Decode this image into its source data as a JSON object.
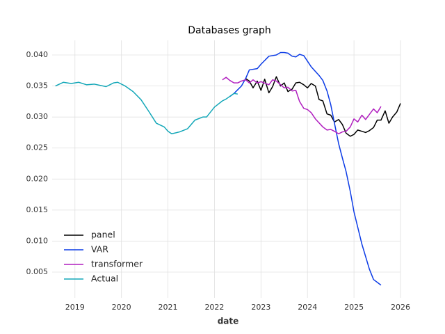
{
  "chart_data": {
    "type": "line",
    "title": "Databases graph",
    "x_label": "date",
    "xlim": [
      2018.51,
      2026
    ],
    "xticks": [
      2019,
      2020,
      2021,
      2022,
      2023,
      2024,
      2025,
      2026
    ],
    "ylim": [
      0.00085,
      0.04236
    ],
    "yticks": [
      0.005,
      {
        "value": 0.01,
        "label": "0.010"
      },
      0.015,
      {
        "value": 0.02,
        "label": "0.020"
      },
      0.025,
      {
        "value": 0.03,
        "label": "0.030"
      },
      0.035,
      {
        "value": 0.04,
        "label": "0.040"
      }
    ],
    "grid": true,
    "legend": "lower left",
    "series": [
      {
        "name": "panel",
        "color": "#000000",
        "x": [
          2022.67,
          2022.75,
          2022.83,
          2022.92,
          2023.0,
          2023.08,
          2023.17,
          2023.25,
          2023.33,
          2023.42,
          2023.5,
          2023.58,
          2023.67,
          2023.75,
          2023.83,
          2023.92,
          2024.0,
          2024.08,
          2024.17,
          2024.25,
          2024.33,
          2024.42,
          2024.5,
          2024.58,
          2024.67,
          2024.75,
          2024.83,
          2024.92,
          2025.0,
          2025.08,
          2025.17,
          2025.25,
          2025.33,
          2025.42,
          2025.5,
          2025.58,
          2025.67,
          2025.75,
          2025.83,
          2025.92,
          2026.0
        ],
        "values": [
          0.0362,
          0.0358,
          0.0347,
          0.0358,
          0.0343,
          0.0361,
          0.0339,
          0.0349,
          0.0365,
          0.035,
          0.0355,
          0.0341,
          0.0345,
          0.0355,
          0.0356,
          0.0352,
          0.0347,
          0.0354,
          0.035,
          0.0328,
          0.0326,
          0.0305,
          0.0303,
          0.0292,
          0.0296,
          0.0288,
          0.0274,
          0.0269,
          0.0272,
          0.0279,
          0.0277,
          0.0275,
          0.0278,
          0.0283,
          0.0295,
          0.0295,
          0.031,
          0.029,
          0.03,
          0.0308,
          0.0322
        ]
      },
      {
        "name": "VAR",
        "color": "#0b3be6",
        "x": [
          2022.33,
          2022.42,
          2022.58,
          2022.67,
          2022.75,
          2022.92,
          2023.0,
          2023.17,
          2023.33,
          2023.42,
          2023.5,
          2023.58,
          2023.67,
          2023.75,
          2023.83,
          2023.92,
          2024.0,
          2024.08,
          2024.25,
          2024.33,
          2024.42,
          2024.5,
          2024.58,
          2024.67,
          2024.75,
          2024.83,
          2024.92,
          2025.0,
          2025.17,
          2025.33,
          2025.42,
          2025.58
        ],
        "values": [
          0.0333,
          0.0338,
          0.035,
          0.0362,
          0.0376,
          0.0378,
          0.0385,
          0.0398,
          0.04,
          0.0404,
          0.0404,
          0.0403,
          0.0398,
          0.0397,
          0.0401,
          0.0399,
          0.039,
          0.0381,
          0.0367,
          0.0359,
          0.0342,
          0.032,
          0.029,
          0.0257,
          0.0234,
          0.0212,
          0.018,
          0.0147,
          0.0095,
          0.0055,
          0.0038,
          0.0029
        ]
      },
      {
        "name": "transformer",
        "color": "#b01ebf",
        "x": [
          2022.17,
          2022.25,
          2022.33,
          2022.42,
          2022.5,
          2022.58,
          2022.67,
          2022.75,
          2022.83,
          2022.92,
          2023.0,
          2023.17,
          2023.25,
          2023.33,
          2023.5,
          2023.58,
          2023.67,
          2023.75,
          2023.83,
          2023.92,
          2024.0,
          2024.08,
          2024.17,
          2024.33,
          2024.42,
          2024.5,
          2024.58,
          2024.67,
          2024.75,
          2024.83,
          2024.92,
          2025.0,
          2025.08,
          2025.17,
          2025.25,
          2025.33,
          2025.42,
          2025.5,
          2025.58
        ],
        "values": [
          0.036,
          0.0364,
          0.0359,
          0.0355,
          0.0355,
          0.0358,
          0.036,
          0.0355,
          0.036,
          0.0355,
          0.0357,
          0.0352,
          0.036,
          0.0358,
          0.0347,
          0.0348,
          0.0342,
          0.0343,
          0.0325,
          0.0314,
          0.0312,
          0.0307,
          0.0297,
          0.0284,
          0.0279,
          0.028,
          0.0277,
          0.0273,
          0.0276,
          0.0277,
          0.0284,
          0.0297,
          0.0292,
          0.0303,
          0.0296,
          0.0304,
          0.0313,
          0.0307,
          0.0317
        ]
      },
      {
        "name": "Actual",
        "color": "#13a7b8",
        "x": [
          2018.58,
          2018.75,
          2018.92,
          2019.08,
          2019.25,
          2019.42,
          2019.67,
          2019.83,
          2019.92,
          2020.08,
          2020.25,
          2020.42,
          2020.58,
          2020.75,
          2020.92,
          2021.0,
          2021.08,
          2021.25,
          2021.42,
          2021.58,
          2021.75,
          2021.83,
          2022.0,
          2022.17,
          2022.25,
          2022.42,
          2022.5
        ],
        "values": [
          0.035,
          0.0356,
          0.0354,
          0.0356,
          0.0352,
          0.0353,
          0.0349,
          0.0355,
          0.0356,
          0.035,
          0.0341,
          0.0328,
          0.031,
          0.029,
          0.0284,
          0.0277,
          0.0273,
          0.0276,
          0.0281,
          0.0295,
          0.03,
          0.03,
          0.0316,
          0.0326,
          0.0329,
          0.0338,
          0.0337
        ]
      }
    ]
  }
}
